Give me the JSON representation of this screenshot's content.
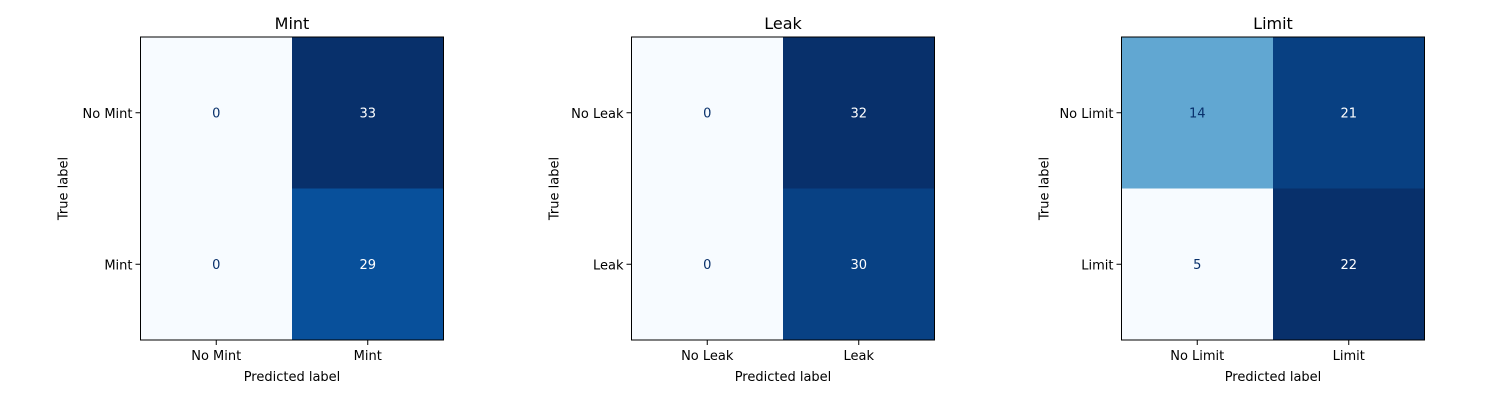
{
  "chart_data": [
    {
      "type": "heatmap",
      "title": "Mint",
      "xlabel": "Predicted label",
      "ylabel": "True label",
      "x_categories": [
        "No Mint",
        "Mint"
      ],
      "y_categories": [
        "No Mint",
        "Mint"
      ],
      "values": [
        [
          0,
          33
        ],
        [
          0,
          29
        ]
      ],
      "colormap": "Blues",
      "vmin": 0,
      "vmax": 33
    },
    {
      "type": "heatmap",
      "title": "Leak",
      "xlabel": "Predicted label",
      "ylabel": "True label",
      "x_categories": [
        "No Leak",
        "Leak"
      ],
      "y_categories": [
        "No Leak",
        "Leak"
      ],
      "values": [
        [
          0,
          32
        ],
        [
          0,
          30
        ]
      ],
      "colormap": "Blues",
      "vmin": 0,
      "vmax": 32
    },
    {
      "type": "heatmap",
      "title": "Limit",
      "xlabel": "Predicted label",
      "ylabel": "True label",
      "x_categories": [
        "No Limit",
        "Limit"
      ],
      "y_categories": [
        "No Limit",
        "Limit"
      ],
      "values": [
        [
          14,
          21
        ],
        [
          5,
          22
        ]
      ],
      "colormap": "Blues",
      "vmin": 5,
      "vmax": 22
    }
  ]
}
